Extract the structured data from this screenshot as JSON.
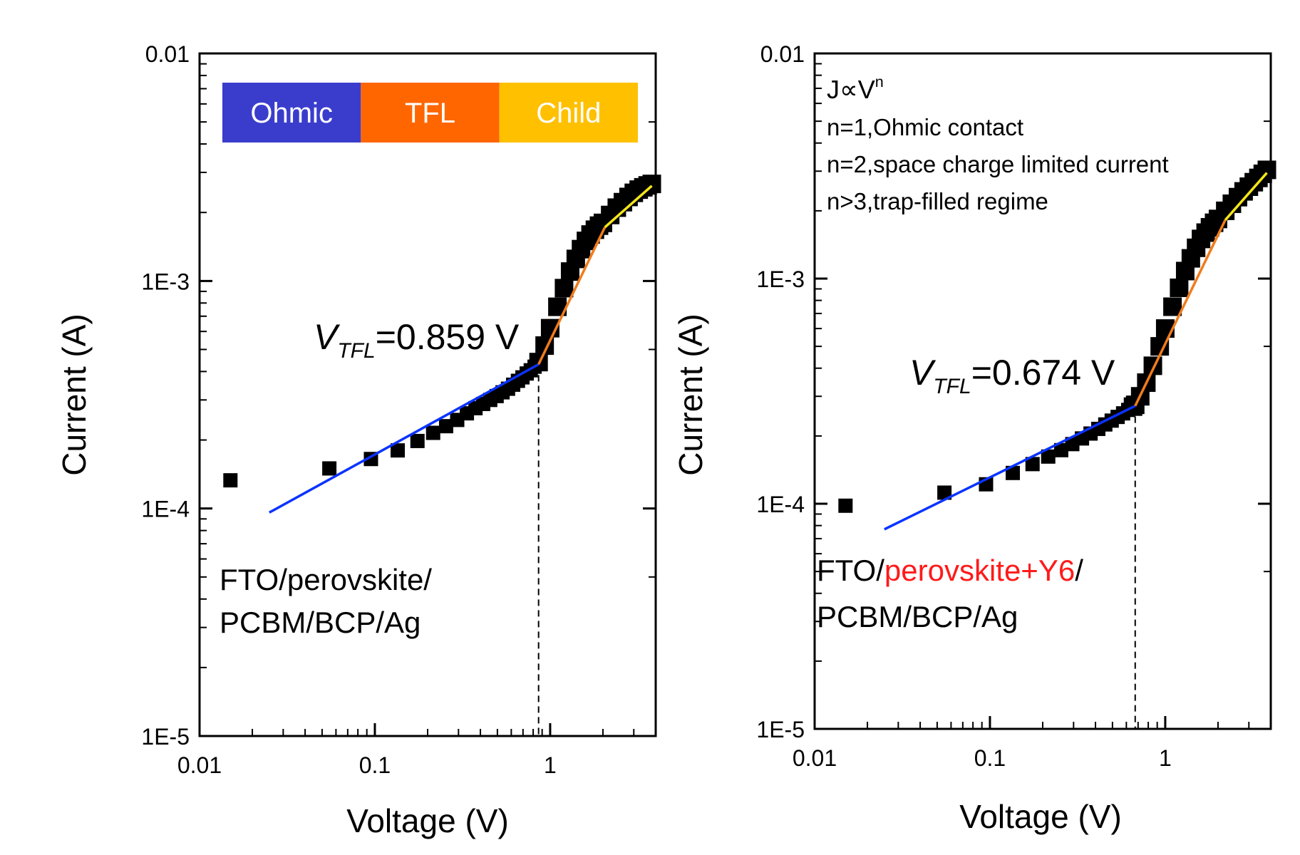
{
  "colors": {
    "ohmic": "#3a3dcc",
    "tfl": "#ff6600",
    "child": "#ffc000",
    "fit_ohmic": "#0b33ff",
    "fit_tfl": "#f07c1b",
    "fit_child": "#f4e61a",
    "highlight": "#ff1a1a"
  },
  "chart_data": [
    {
      "type": "scatter",
      "panel": "left",
      "xscale": "log",
      "yscale": "log",
      "xlim": [
        0.01,
        4.0
      ],
      "ylim": [
        1e-05,
        0.01
      ],
      "xlabel": "Voltage (V)",
      "ylabel": "Current (A)",
      "xticks": [
        0.01,
        0.1,
        1
      ],
      "xtick_labels": [
        "0.01",
        "0.1",
        "1"
      ],
      "yticks": [
        1e-05,
        0.0001,
        0.001,
        0.01
      ],
      "ytick_labels": [
        "1E-5",
        "1E-4",
        "1E-3",
        "0.01"
      ],
      "vtfl_value": 0.859,
      "vtfl_label": {
        "prefix": "V",
        "sub": "TFL",
        "text": "=0.859 V"
      },
      "regions": [
        {
          "key": "ohmic",
          "label": "Ohmic"
        },
        {
          "key": "tfl",
          "label": "TFL"
        },
        {
          "key": "child",
          "label": "Child"
        }
      ],
      "device_lines": [
        [
          {
            "text": "FTO/perovskite/",
            "highlight": false
          }
        ],
        [
          {
            "text": "PCBM/BCP/Ag",
            "highlight": false
          }
        ]
      ],
      "series": [
        {
          "name": "measured",
          "x": [
            0.015,
            0.055,
            0.095,
            0.135,
            0.175,
            0.215,
            0.255,
            0.295,
            0.335,
            0.375,
            0.415,
            0.455,
            0.495,
            0.535,
            0.575,
            0.615,
            0.655,
            0.695,
            0.735,
            0.775,
            0.815,
            0.859,
            0.93,
            1.0,
            1.1,
            1.2,
            1.3,
            1.4,
            1.5,
            1.6,
            1.7,
            1.8,
            1.9,
            2.0,
            2.2,
            2.4,
            2.6,
            2.8,
            3.0,
            3.2,
            3.4,
            3.6,
            3.8
          ],
          "y": [
            0.000133,
            0.00015,
            0.000165,
            0.00018,
            0.000198,
            0.000215,
            0.00023,
            0.000245,
            0.000262,
            0.000276,
            0.000288,
            0.0003,
            0.000312,
            0.000324,
            0.000336,
            0.00035,
            0.000364,
            0.000377,
            0.000392,
            0.000405,
            0.00042,
            0.00044,
            0.00052,
            0.00062,
            0.00077,
            0.00093,
            0.0011,
            0.00125,
            0.00138,
            0.0015,
            0.0016,
            0.00168,
            0.00175,
            0.0018,
            0.00195,
            0.0021,
            0.00222,
            0.00234,
            0.00244,
            0.00252,
            0.00258,
            0.00263,
            0.00267
          ]
        },
        {
          "name": "fit-ohmic",
          "x": [
            0.025,
            0.859
          ],
          "y": [
            9.6e-05,
            0.00043
          ]
        },
        {
          "name": "fit-tfl",
          "x": [
            0.859,
            2.05
          ],
          "y": [
            0.00043,
            0.00172
          ]
        },
        {
          "name": "fit-child",
          "x": [
            2.05,
            3.8
          ],
          "y": [
            0.00172,
            0.00262
          ]
        }
      ]
    },
    {
      "type": "scatter",
      "panel": "right",
      "xscale": "log",
      "yscale": "log",
      "xlim": [
        0.01,
        4.0
      ],
      "ylim": [
        1e-05,
        0.01
      ],
      "xlabel": "Voltage (V)",
      "ylabel": "Current (A)",
      "xticks": [
        0.01,
        0.1,
        1
      ],
      "xtick_labels": [
        "0.01",
        "0.1",
        "1"
      ],
      "yticks": [
        1e-05,
        0.0001,
        0.001,
        0.01
      ],
      "ytick_labels": [
        "1E-5",
        "1E-4",
        "1E-3",
        "0.01"
      ],
      "vtfl_value": 0.674,
      "vtfl_label": {
        "prefix": "V",
        "sub": "TFL",
        "text": "=0.674 V"
      },
      "annotation": {
        "relation_base": "J∝V",
        "relation_exp": "n",
        "lines": [
          "n=1,Ohmic contact",
          "n=2,space charge limited current",
          "n>3,trap-filled regime"
        ]
      },
      "device_lines": [
        [
          {
            "text": "FTO/",
            "highlight": false
          },
          {
            "text": "perovskite+Y6",
            "highlight": true
          },
          {
            "text": "/",
            "highlight": false
          }
        ],
        [
          {
            "text": "PCBM/BCP/Ag",
            "highlight": false
          }
        ]
      ],
      "series": [
        {
          "name": "measured",
          "x": [
            0.015,
            0.055,
            0.095,
            0.135,
            0.175,
            0.215,
            0.255,
            0.295,
            0.335,
            0.375,
            0.415,
            0.455,
            0.495,
            0.535,
            0.575,
            0.615,
            0.655,
            0.674,
            0.72,
            0.78,
            0.85,
            0.93,
            1.0,
            1.1,
            1.2,
            1.3,
            1.4,
            1.5,
            1.6,
            1.7,
            1.8,
            1.9,
            2.0,
            2.2,
            2.4,
            2.6,
            2.8,
            3.0,
            3.2,
            3.4,
            3.6,
            3.8
          ],
          "y": [
            9.8e-05,
            0.000112,
            0.000122,
            0.000137,
            0.00015,
            0.000162,
            0.000173,
            0.000184,
            0.000195,
            0.000205,
            0.000215,
            0.000225,
            0.000234,
            0.000243,
            0.000252,
            0.000261,
            0.00027,
            0.000275,
            0.0003,
            0.000345,
            0.00041,
            0.0005,
            0.0006,
            0.00075,
            0.00091,
            0.00108,
            0.00123,
            0.00137,
            0.0015,
            0.0016,
            0.00169,
            0.00177,
            0.00184,
            0.002,
            0.00215,
            0.0023,
            0.00244,
            0.00256,
            0.00268,
            0.0028,
            0.00292,
            0.00304
          ]
        },
        {
          "name": "fit-ohmic",
          "x": [
            0.025,
            0.674
          ],
          "y": [
            7.7e-05,
            0.000272
          ]
        },
        {
          "name": "fit-tfl",
          "x": [
            0.674,
            2.2
          ],
          "y": [
            0.000272,
            0.00182
          ]
        },
        {
          "name": "fit-child",
          "x": [
            2.2,
            3.8
          ],
          "y": [
            0.00182,
            0.00295
          ]
        }
      ]
    }
  ]
}
